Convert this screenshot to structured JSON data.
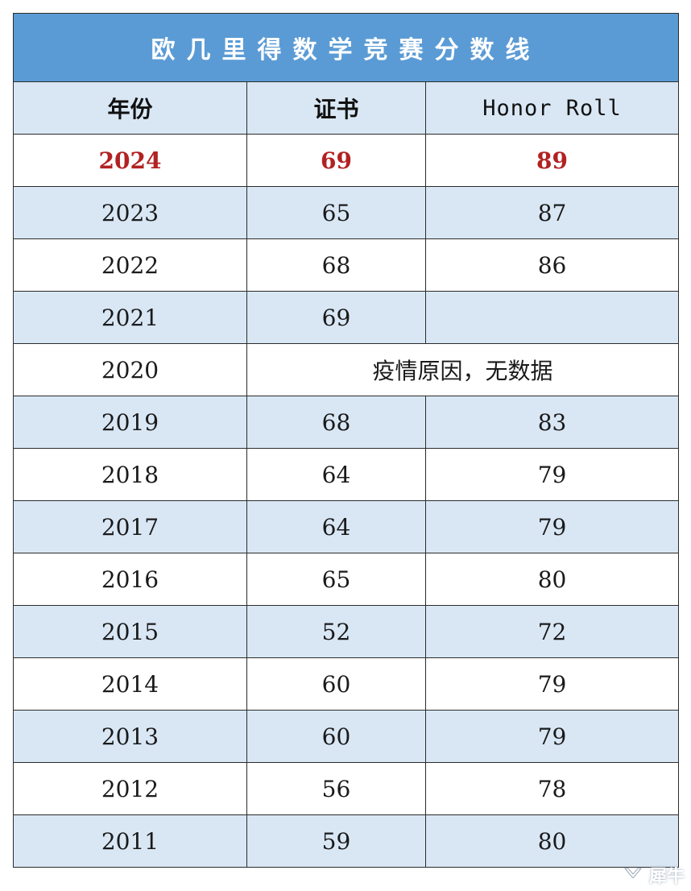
{
  "title": "欧几里得数学竞赛分数线",
  "headers": [
    "年份",
    "证书",
    "Honor Roll"
  ],
  "rows": [
    {
      "year": "2024",
      "certificate": "69",
      "honor_roll": "89",
      "highlight": true
    },
    {
      "year": "2023",
      "certificate": "65",
      "honor_roll": "87"
    },
    {
      "year": "2022",
      "certificate": "68",
      "honor_roll": "86"
    },
    {
      "year": "2021",
      "certificate": "69",
      "honor_roll": ""
    },
    {
      "year": "2020",
      "note": "疫情原因，无数据"
    },
    {
      "year": "2019",
      "certificate": "68",
      "honor_roll": "83"
    },
    {
      "year": "2018",
      "certificate": "64",
      "honor_roll": "79"
    },
    {
      "year": "2017",
      "certificate": "64",
      "honor_roll": "79"
    },
    {
      "year": "2016",
      "certificate": "65",
      "honor_roll": "80"
    },
    {
      "year": "2015",
      "certificate": "52",
      "honor_roll": "72"
    },
    {
      "year": "2014",
      "certificate": "60",
      "honor_roll": "79"
    },
    {
      "year": "2013",
      "certificate": "60",
      "honor_roll": "79"
    },
    {
      "year": "2012",
      "certificate": "56",
      "honor_roll": "78"
    },
    {
      "year": "2011",
      "certificate": "59",
      "honor_roll": "80"
    }
  ],
  "colors": {
    "title_background": "#5b9bd5",
    "row_shade": "#d9e7f5",
    "highlight_text": "#b22222"
  },
  "watermark": {
    "icon": "logo-icon",
    "text": "犀牛"
  }
}
